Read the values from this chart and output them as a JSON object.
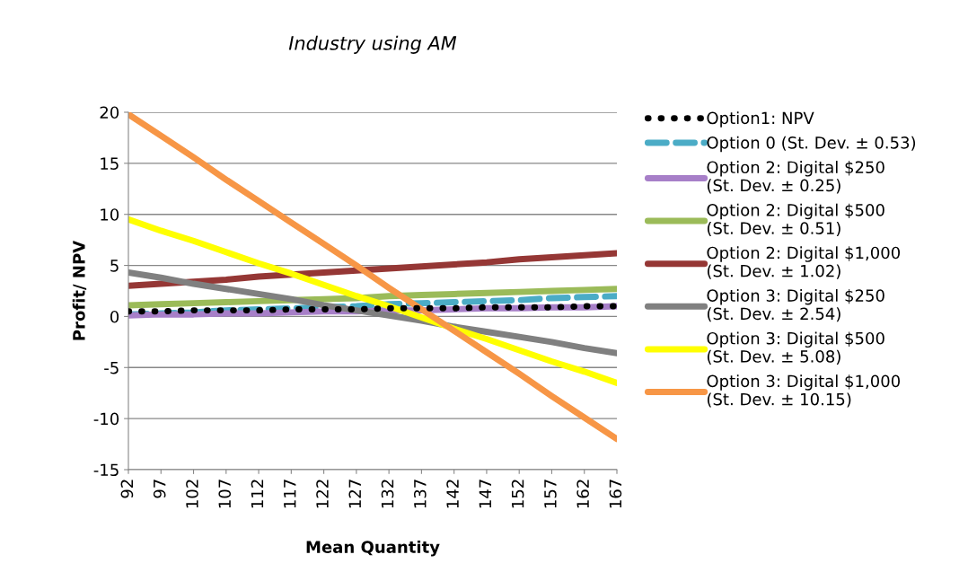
{
  "chart_data": {
    "type": "line",
    "title": "Industry using AM",
    "xlabel": "Mean Quantity",
    "ylabel": "Profit/ NPV",
    "categories": [
      "92",
      "97",
      "102",
      "107",
      "112",
      "117",
      "122",
      "127",
      "132",
      "137",
      "142",
      "147",
      "152",
      "157",
      "162",
      "167"
    ],
    "ylim": [
      -15,
      20
    ],
    "yticks": [
      -15,
      -10,
      -5,
      0,
      5,
      10,
      15,
      20
    ],
    "grid": "y",
    "legend": "right",
    "series": [
      {
        "name": "Option1: NPV",
        "color": "#000000",
        "line_style": "dotted",
        "values": [
          0.5,
          0.5,
          0.6,
          0.6,
          0.6,
          0.7,
          0.7,
          0.7,
          0.8,
          0.8,
          0.8,
          0.9,
          0.9,
          0.9,
          1.0,
          1.0
        ]
      },
      {
        "name": "Option 0 (St. Dev. ± 0.53)",
        "color": "#4bacc6",
        "line_style": "dashed",
        "values": [
          0.2,
          0.3,
          0.4,
          0.6,
          0.7,
          0.8,
          0.9,
          1.0,
          1.2,
          1.3,
          1.4,
          1.5,
          1.6,
          1.8,
          1.9,
          2.0
        ]
      },
      {
        "name": "Option 2: Digital $250\n(St. Dev. ± 0.25)",
        "color": "#a77fc8",
        "line_style": "solid",
        "values": [
          0.1,
          0.2,
          0.2,
          0.3,
          0.3,
          0.4,
          0.5,
          0.5,
          0.6,
          0.6,
          0.7,
          0.8,
          0.8,
          0.9,
          0.9,
          1.0
        ]
      },
      {
        "name": "Option 2: Digital $500\n(St. Dev. ± 0.51)",
        "color": "#9bbb59",
        "line_style": "solid",
        "values": [
          1.1,
          1.2,
          1.3,
          1.4,
          1.5,
          1.6,
          1.7,
          1.8,
          2.0,
          2.1,
          2.2,
          2.3,
          2.4,
          2.5,
          2.6,
          2.7
        ]
      },
      {
        "name": "Option 2: Digital $1,000\n(St. Dev. ± 1.02)",
        "color": "#953735",
        "line_style": "solid",
        "values": [
          3.0,
          3.2,
          3.4,
          3.6,
          3.9,
          4.1,
          4.3,
          4.5,
          4.7,
          4.9,
          5.1,
          5.3,
          5.6,
          5.8,
          6.0,
          6.2
        ]
      },
      {
        "name": "Option 3: Digital $250\n(St. Dev. ± 2.54)",
        "color": "#808080",
        "line_style": "solid",
        "values": [
          4.3,
          3.8,
          3.2,
          2.7,
          2.2,
          1.7,
          1.1,
          0.6,
          0.1,
          -0.4,
          -1.0,
          -1.5,
          -2.0,
          -2.5,
          -3.1,
          -3.6
        ]
      },
      {
        "name": "Option 3: Digital $500\n(St. Dev. ± 5.08)",
        "color": "#ffff00",
        "line_style": "solid",
        "values": [
          9.5,
          8.4,
          7.4,
          6.3,
          5.2,
          4.2,
          3.1,
          2.0,
          1.0,
          -0.1,
          -1.2,
          -2.2,
          -3.3,
          -4.4,
          -5.4,
          -6.5
        ]
      },
      {
        "name": "Option 3: Digital $1,000\n(St. Dev. ± 10.15)",
        "color": "#f79646",
        "line_style": "solid",
        "values": [
          19.8,
          17.7,
          15.6,
          13.4,
          11.3,
          9.2,
          7.1,
          5.0,
          2.8,
          0.7,
          -1.4,
          -3.5,
          -5.6,
          -7.8,
          -9.9,
          -12.0
        ]
      }
    ]
  }
}
